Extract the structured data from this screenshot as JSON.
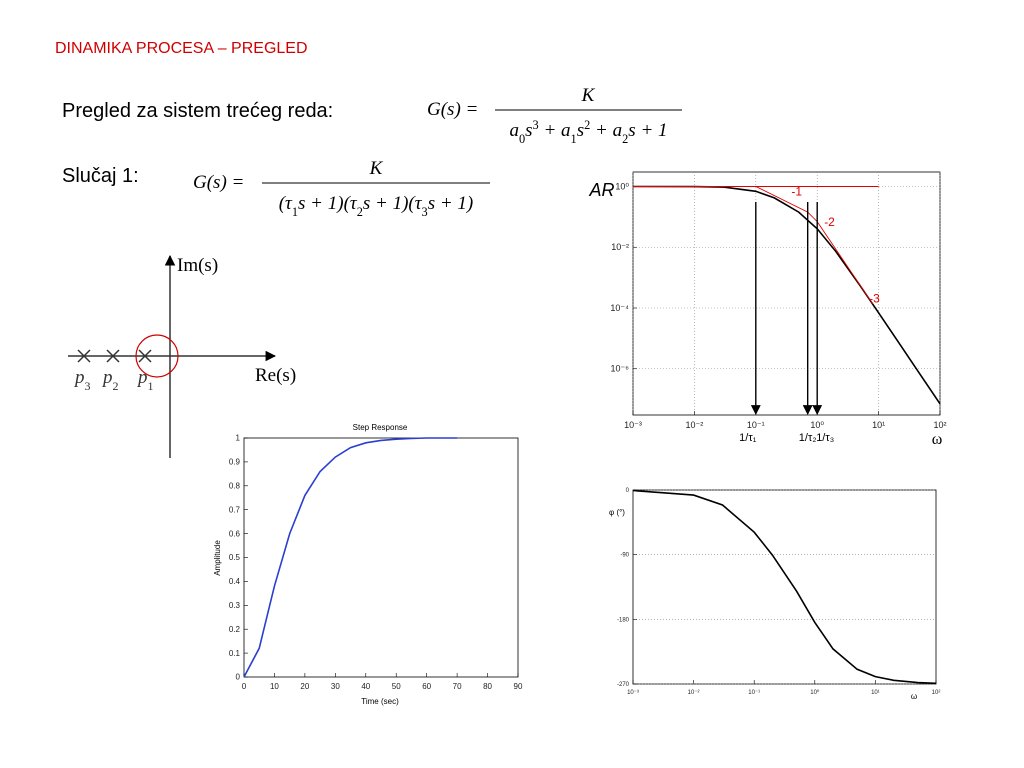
{
  "header": {
    "title": "DINAMIKA PROCESA – PREGLED"
  },
  "intro": {
    "text": "Pregled za sistem trećeg reda:",
    "formula": {
      "lhs": "G(s) =",
      "numerator": "K",
      "denominator": [
        {
          "text": "a",
          "pos": "base"
        },
        {
          "text": "0",
          "pos": "sub"
        },
        {
          "text": "s",
          "pos": "base"
        },
        {
          "text": "3",
          "pos": "sup"
        },
        {
          "text": " + a",
          "pos": "base"
        },
        {
          "text": "1",
          "pos": "sub"
        },
        {
          "text": "s",
          "pos": "base"
        },
        {
          "text": "2",
          "pos": "sup"
        },
        {
          "text": " + a",
          "pos": "base"
        },
        {
          "text": "2",
          "pos": "sub"
        },
        {
          "text": "s + 1",
          "pos": "base"
        }
      ]
    }
  },
  "case": {
    "text": "Slučaj 1:",
    "formula": {
      "lhs": "G(s) =",
      "numerator": "K",
      "denominator": [
        {
          "text": "(τ",
          "pos": "base"
        },
        {
          "text": "1",
          "pos": "sub"
        },
        {
          "text": "s + 1)(τ",
          "pos": "base"
        },
        {
          "text": "2",
          "pos": "sub"
        },
        {
          "text": "s + 1)(τ",
          "pos": "base"
        },
        {
          "text": "3",
          "pos": "sub"
        },
        {
          "text": "s + 1)",
          "pos": "base"
        }
      ]
    }
  },
  "pole_plot": {
    "imag_label": "Im(s)",
    "real_label": "Re(s)",
    "poles": [
      {
        "base": "p",
        "sub": "3"
      },
      {
        "base": "p",
        "sub": "2"
      },
      {
        "base": "p",
        "sub": "1"
      }
    ]
  },
  "chart_data": [
    {
      "type": "line",
      "title": "Step Response",
      "x_label": "Time (sec)",
      "y_label": "Amplitude",
      "x": [
        0,
        5,
        10,
        15,
        20,
        25,
        30,
        35,
        40,
        45,
        50,
        55,
        60,
        65,
        70
      ],
      "series": [
        {
          "color": "#2a3fd0",
          "values": [
            0,
            0.12,
            0.38,
            0.6,
            0.76,
            0.86,
            0.92,
            0.96,
            0.98,
            0.99,
            0.995,
            0.998,
            1,
            1,
            1
          ]
        }
      ],
      "xlim": [
        0,
        90
      ],
      "xticks": [
        0,
        10,
        20,
        30,
        40,
        50,
        60,
        70,
        80,
        90
      ],
      "ylim": [
        0,
        1
      ],
      "yticks": [
        0,
        0.1,
        0.2,
        0.3,
        0.4,
        0.5,
        0.6,
        0.7,
        0.8,
        0.9,
        1
      ]
    },
    {
      "type": "line",
      "x_label": "ω",
      "y_label": "AR",
      "xscale": "log",
      "yscale": "log",
      "grid": "both",
      "x": [
        0.001,
        0.01,
        0.03,
        0.1,
        0.2,
        0.5,
        1,
        2,
        5,
        10,
        20,
        50,
        100
      ],
      "series": [
        {
          "color": "#000000",
          "values": [
            1,
            0.995,
            0.957,
            0.697,
            0.421,
            0.143,
            0.0404,
            0.00738,
            0.000544,
            6.95e-05,
            8.7e-06,
            5.6e-07,
            7e-08
          ]
        },
        {
          "color": "#e00000",
          "x": [
            0.001,
            0.1,
            0.7,
            1,
            8
          ],
          "values": [
            1,
            1,
            0.143,
            0.07,
            0.000137
          ]
        },
        {
          "color": "#e00000",
          "x": [
            0.1,
            10
          ],
          "values": [
            1,
            1
          ]
        }
      ],
      "annotations": [
        "-1",
        "-2",
        "-3"
      ],
      "corner_x": [
        0.1,
        0.7,
        1
      ],
      "corner_labels": [
        "1/τ₁",
        "1/τ₂",
        "1/τ₃"
      ],
      "xlim": [
        0.001,
        100
      ],
      "xticks": [
        {
          "value": 0.001,
          "label": "10⁻³"
        },
        {
          "value": 0.01,
          "label": "10⁻²"
        },
        {
          "value": 0.1,
          "label": "10⁻¹"
        },
        {
          "value": 1,
          "label": "10⁰"
        },
        {
          "value": 10,
          "label": "10¹"
        },
        {
          "value": 100,
          "label": "10²"
        }
      ],
      "ylim": [
        3e-08,
        3
      ],
      "yticks": [
        {
          "value": 1,
          "label": "10⁰"
        },
        {
          "value": 0.01,
          "label": "10⁻²"
        },
        {
          "value": 0.0001,
          "label": "10⁻⁴"
        },
        {
          "value": 1e-06,
          "label": "10⁻⁶"
        }
      ]
    },
    {
      "type": "line",
      "x_label": "ω",
      "y_label": "φ (°)",
      "xscale": "log",
      "grid": "y",
      "x": [
        0.001,
        0.01,
        0.03,
        0.1,
        0.2,
        0.5,
        1,
        2,
        5,
        10,
        20,
        50,
        100
      ],
      "series": [
        {
          "color": "#000000",
          "values": [
            -0.7,
            -7.1,
            -20.9,
            -58.8,
            -90.6,
            -140.8,
            -184.3,
            -221.2,
            -249.6,
            -259.7,
            -264.8,
            -268,
            -269
          ]
        }
      ],
      "xlim": [
        0.001,
        100
      ],
      "xticks": [
        {
          "value": 0.001,
          "label": "10⁻³"
        },
        {
          "value": 0.01,
          "label": "10⁻²"
        },
        {
          "value": 0.1,
          "label": "10⁻¹"
        },
        {
          "value": 1,
          "label": "10⁰"
        },
        {
          "value": 10,
          "label": "10¹"
        },
        {
          "value": 100,
          "label": "10²"
        }
      ],
      "ylim": [
        -270,
        0
      ],
      "yticks": [
        0,
        -90,
        -180,
        -270
      ]
    }
  ]
}
